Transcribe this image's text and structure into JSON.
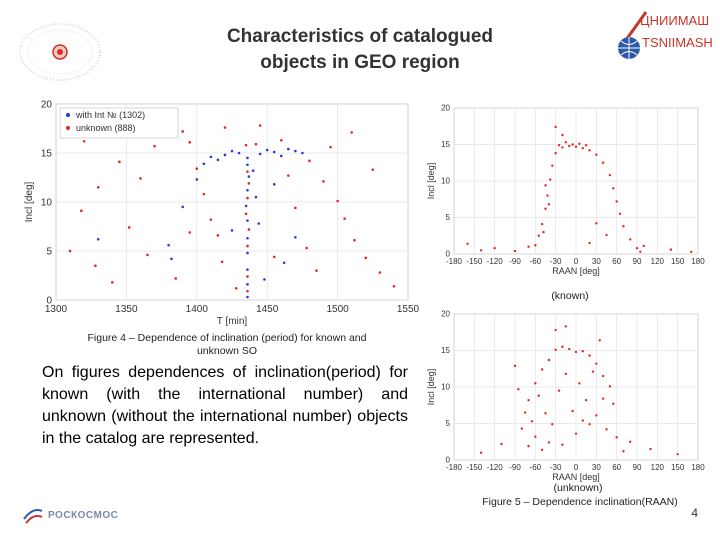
{
  "slide": {
    "title_line1": "Characteristics of catalogued",
    "title_line2": "objects in GEO region",
    "logo_ru": "ЦНИИМАШ",
    "logo_en": "TSNIIMASH",
    "footer_logo": "РОСКОСМОС",
    "page_number": "4",
    "figure4_caption_line1": "Figure 4 – Dependence of inclination (period) for known and",
    "figure4_caption_line2": "unknown SO",
    "figure5_caption": "Figure 5 – Dependence inclination(RAAN)",
    "body_text": "On figures dependences of inclination(period) for known (with the international number) and unknown (without the international number) objects in the catalog are represented.",
    "known_label": "(known)",
    "unknown_label": "(unknown)"
  },
  "colors": {
    "red": "#e8261c",
    "blue": "#2a3bd6",
    "title": "#333333",
    "logo": "#c9342c"
  },
  "chart_data": [
    {
      "type": "scatter",
      "title": "",
      "xlabel": "T [min]",
      "ylabel": "Incl [deg]",
      "xlim": [
        1300,
        1550
      ],
      "ylim": [
        0,
        20
      ],
      "xticks": [
        "1300",
        "1350",
        "1400",
        "1450",
        "1500",
        "1550"
      ],
      "yticks": [
        "0",
        "5",
        "10",
        "15",
        "20"
      ],
      "grid": true,
      "legend_position": "top-left",
      "series": [
        {
          "name": "with Int № (1302)",
          "color": "#2a3bd6",
          "points": [
            [
              1436,
              14.5
            ],
            [
              1436,
              13.8
            ],
            [
              1437,
              12.6
            ],
            [
              1436,
              11.2
            ],
            [
              1435,
              9.6
            ],
            [
              1436,
              8.1
            ],
            [
              1436,
              6.3
            ],
            [
              1436,
              4.8
            ],
            [
              1436,
              3.1
            ],
            [
              1436,
              1.6
            ],
            [
              1436,
              0.3
            ],
            [
              1420,
              14.8
            ],
            [
              1425,
              15.2
            ],
            [
              1430,
              15.0
            ],
            [
              1445,
              14.9
            ],
            [
              1450,
              15.3
            ],
            [
              1455,
              15.1
            ],
            [
              1460,
              14.7
            ],
            [
              1465,
              15.4
            ],
            [
              1470,
              15.2
            ],
            [
              1475,
              15.0
            ],
            [
              1410,
              14.6
            ],
            [
              1415,
              14.3
            ],
            [
              1405,
              13.9
            ],
            [
              1440,
              13.2
            ],
            [
              1442,
              10.5
            ],
            [
              1444,
              7.8
            ],
            [
              1380,
              5.6
            ],
            [
              1382,
              4.2
            ],
            [
              1425,
              7.1
            ],
            [
              1462,
              3.8
            ],
            [
              1448,
              2.1
            ],
            [
              1330,
              6.2
            ],
            [
              1470,
              6.4
            ],
            [
              1390,
              9.5
            ],
            [
              1455,
              11.8
            ],
            [
              1400,
              12.3
            ]
          ]
        },
        {
          "name": "unknown (888)",
          "color": "#e8261c",
          "points": [
            [
              1435,
              15.8
            ],
            [
              1436,
              13.1
            ],
            [
              1437,
              11.9
            ],
            [
              1436,
              10.4
            ],
            [
              1435,
              8.8
            ],
            [
              1437,
              7.2
            ],
            [
              1436,
              5.5
            ],
            [
              1436,
              2.4
            ],
            [
              1436,
              0.9
            ],
            [
              1390,
              17.2
            ],
            [
              1420,
              17.6
            ],
            [
              1320,
              16.2
            ],
            [
              1345,
              14.1
            ],
            [
              1360,
              12.4
            ],
            [
              1370,
              15.7
            ],
            [
              1395,
              16.1
            ],
            [
              1405,
              10.8
            ],
            [
              1410,
              8.2
            ],
            [
              1415,
              6.6
            ],
            [
              1418,
              3.9
            ],
            [
              1460,
              16.3
            ],
            [
              1480,
              14.2
            ],
            [
              1490,
              12.1
            ],
            [
              1500,
              10.1
            ],
            [
              1505,
              8.3
            ],
            [
              1512,
              6.1
            ],
            [
              1520,
              4.3
            ],
            [
              1530,
              2.8
            ],
            [
              1540,
              1.4
            ],
            [
              1318,
              9.1
            ],
            [
              1328,
              3.5
            ],
            [
              1340,
              1.8
            ],
            [
              1352,
              7.4
            ],
            [
              1365,
              4.6
            ],
            [
              1385,
              2.2
            ],
            [
              1395,
              6.9
            ],
            [
              1400,
              13.4
            ],
            [
              1445,
              17.8
            ],
            [
              1470,
              9.4
            ],
            [
              1478,
              5.3
            ],
            [
              1485,
              3.0
            ],
            [
              1495,
              15.6
            ],
            [
              1510,
              17.1
            ],
            [
              1525,
              13.3
            ],
            [
              1330,
              11.5
            ],
            [
              1310,
              5.0
            ],
            [
              1455,
              4.4
            ],
            [
              1465,
              12.7
            ],
            [
              1428,
              1.2
            ],
            [
              1442,
              15.9
            ]
          ]
        }
      ]
    },
    {
      "type": "scatter",
      "title": "",
      "xlabel": "RAAN [deg]",
      "ylabel": "Incl [deg]",
      "xlim": [
        -180,
        180
      ],
      "ylim": [
        0,
        20
      ],
      "xticks": [
        "-180",
        "-150",
        "-120",
        "-90",
        "-60",
        "-30",
        "0",
        "30",
        "60",
        "90",
        "120",
        "150",
        "180"
      ],
      "yticks": [
        "0",
        "5",
        "10",
        "15",
        "20"
      ],
      "grid": true,
      "caption": "(known)",
      "series": [
        {
          "color": "#e8261c",
          "points": [
            [
              -20,
              14.6
            ],
            [
              -10,
              14.8
            ],
            [
              0,
              14.7
            ],
            [
              10,
              14.5
            ],
            [
              20,
              14.2
            ],
            [
              30,
              13.6
            ],
            [
              40,
              12.5
            ],
            [
              50,
              10.8
            ],
            [
              55,
              9.0
            ],
            [
              60,
              7.2
            ],
            [
              65,
              5.5
            ],
            [
              70,
              3.8
            ],
            [
              80,
              2.0
            ],
            [
              90,
              0.8
            ],
            [
              95,
              0.3
            ],
            [
              -30,
              13.8
            ],
            [
              -35,
              12.1
            ],
            [
              -38,
              10.2
            ],
            [
              -42,
              8.0
            ],
            [
              -45,
              6.2
            ],
            [
              -50,
              4.1
            ],
            [
              -55,
              2.5
            ],
            [
              -60,
              1.2
            ],
            [
              -25,
              14.9
            ],
            [
              5,
              15.1
            ],
            [
              -15,
              15.3
            ],
            [
              15,
              14.9
            ],
            [
              -5,
              15.0
            ],
            [
              -20,
              16.3
            ],
            [
              -30,
              17.4
            ],
            [
              -45,
              9.4
            ],
            [
              -40,
              6.8
            ],
            [
              -48,
              3.0
            ],
            [
              45,
              2.6
            ],
            [
              30,
              4.2
            ],
            [
              20,
              1.5
            ],
            [
              -140,
              0.5
            ],
            [
              -120,
              0.8
            ],
            [
              -90,
              0.4
            ],
            [
              -70,
              1.0
            ],
            [
              100,
              1.1
            ],
            [
              140,
              0.6
            ],
            [
              170,
              0.3
            ],
            [
              -160,
              1.4
            ]
          ]
        }
      ]
    },
    {
      "type": "scatter",
      "title": "",
      "xlabel": "RAAN [deg]",
      "ylabel": "Incl [deg]",
      "xlim": [
        -180,
        180
      ],
      "ylim": [
        0,
        20
      ],
      "xticks": [
        "-180",
        "-150",
        "-120",
        "-90",
        "-60",
        "-30",
        "0",
        "30",
        "60",
        "90",
        "120",
        "150",
        "180"
      ],
      "yticks": [
        "0",
        "5",
        "10",
        "15",
        "20"
      ],
      "grid": true,
      "caption": "(unknown)",
      "series": [
        {
          "color": "#e8261c",
          "points": [
            [
              -30,
              15.1
            ],
            [
              -20,
              15.5
            ],
            [
              -10,
              15.2
            ],
            [
              0,
              14.8
            ],
            [
              10,
              14.9
            ],
            [
              20,
              14.3
            ],
            [
              30,
              13.2
            ],
            [
              40,
              11.5
            ],
            [
              -40,
              13.7
            ],
            [
              -50,
              12.4
            ],
            [
              -60,
              10.5
            ],
            [
              -70,
              8.2
            ],
            [
              -75,
              6.5
            ],
            [
              -80,
              4.3
            ],
            [
              -60,
              3.2
            ],
            [
              -40,
              2.4
            ],
            [
              -20,
              2.1
            ],
            [
              0,
              3.6
            ],
            [
              20,
              4.9
            ],
            [
              30,
              6.1
            ],
            [
              40,
              8.4
            ],
            [
              50,
              10.1
            ],
            [
              55,
              7.7
            ],
            [
              -55,
              8.8
            ],
            [
              -45,
              6.4
            ],
            [
              -35,
              4.9
            ],
            [
              -25,
              9.5
            ],
            [
              -15,
              11.8
            ],
            [
              5,
              10.5
            ],
            [
              15,
              8.2
            ],
            [
              25,
              12.1
            ],
            [
              -65,
              5.3
            ],
            [
              -70,
              1.9
            ],
            [
              60,
              3.1
            ],
            [
              70,
              1.2
            ],
            [
              80,
              2.5
            ],
            [
              -85,
              9.7
            ],
            [
              -90,
              12.9
            ],
            [
              -30,
              17.8
            ],
            [
              -15,
              18.3
            ],
            [
              35,
              16.4
            ],
            [
              -140,
              1.0
            ],
            [
              -110,
              2.2
            ],
            [
              110,
              1.5
            ],
            [
              150,
              0.8
            ],
            [
              -5,
              6.7
            ],
            [
              10,
              5.4
            ],
            [
              -50,
              1.4
            ],
            [
              45,
              4.2
            ]
          ]
        }
      ]
    }
  ]
}
